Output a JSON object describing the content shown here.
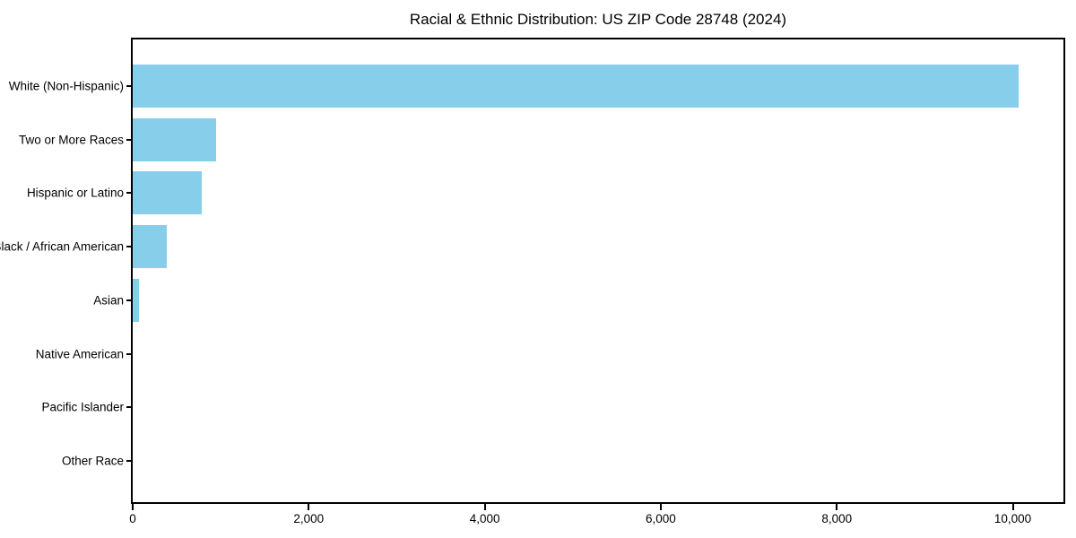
{
  "page": {
    "background_color": "#ffffff",
    "text_color": "#000000"
  },
  "chart_data": {
    "type": "bar",
    "orientation": "horizontal",
    "title": "Racial & Ethnic Distribution: US ZIP Code 28748 (2024)",
    "xlabel": "",
    "ylabel": "",
    "categories": [
      "White (Non-Hispanic)",
      "Two or More Races",
      "Hispanic or Latino",
      "Black / African American",
      "Asian",
      "Native American",
      "Pacific Islander",
      "Other Race"
    ],
    "values": [
      10070,
      950,
      780,
      390,
      70,
      0,
      0,
      0
    ],
    "xlim": [
      0,
      10575
    ],
    "x_tick_values": [
      0,
      2000,
      4000,
      6000,
      8000,
      10000
    ],
    "x_tick_labels": [
      "0",
      "2,000",
      "4,000",
      "6,000",
      "8,000",
      "10,000"
    ],
    "grid": false,
    "legend": null,
    "bar_color": "#87CEEB",
    "spine_color": "#000000",
    "tick_color": "#000000"
  }
}
